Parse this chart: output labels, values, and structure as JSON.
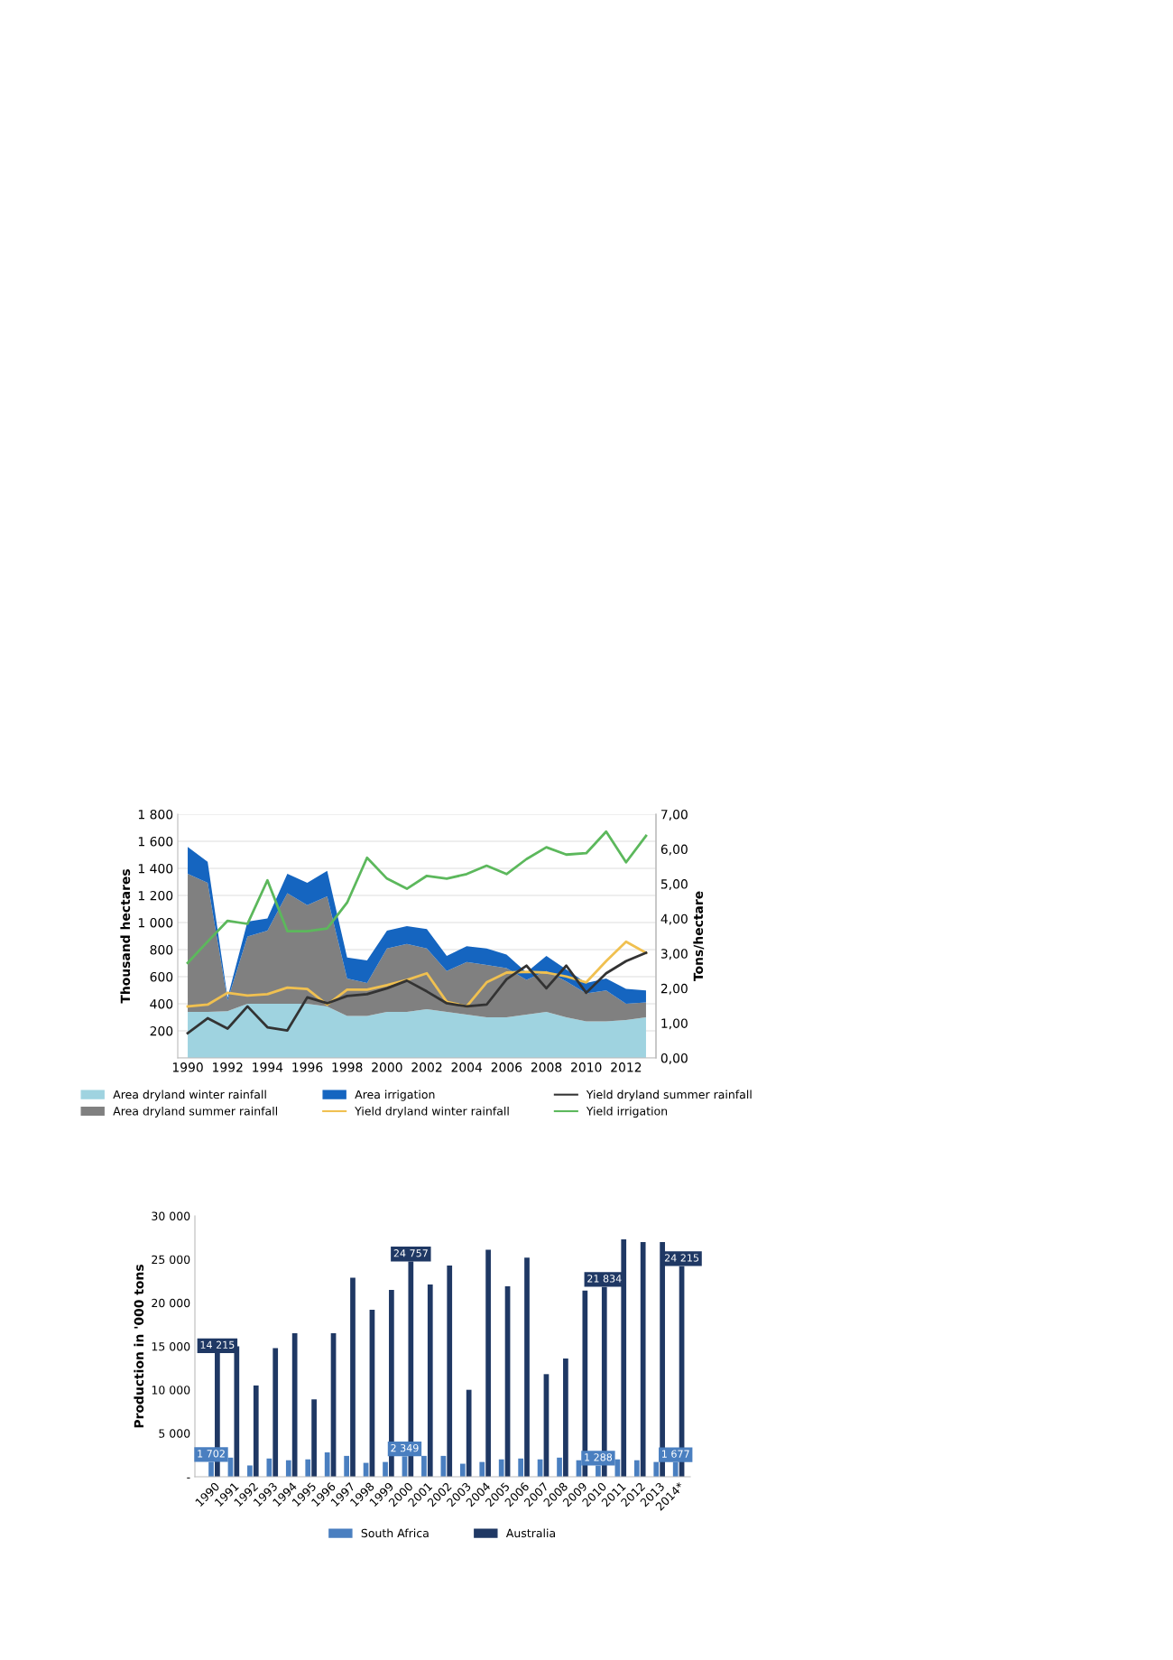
{
  "chart_data": [
    {
      "type": "area",
      "ylabel": "Thousand hectares",
      "y2label": "Tons/hectare",
      "stacked": true,
      "grid": "y",
      "legend": "bottom",
      "x": [
        1990,
        1991,
        1992,
        1993,
        1994,
        1995,
        1996,
        1997,
        1998,
        1999,
        2000,
        2001,
        2002,
        2003,
        2004,
        2005,
        2006,
        2007,
        2008,
        2009,
        2010,
        2011,
        2012,
        2013
      ],
      "xlim": [
        1989.5,
        2013.5
      ],
      "xticks": [
        1990,
        1992,
        1994,
        1996,
        1998,
        2000,
        2002,
        2004,
        2006,
        2008,
        2010,
        2012
      ],
      "ylim": [
        0,
        1800
      ],
      "yticks": [
        {
          "value": 0,
          "label": null
        },
        200,
        400,
        600,
        800,
        {
          "value": 1000,
          "label": "1 000"
        },
        {
          "value": 1200,
          "label": "1 200"
        },
        {
          "value": 1400,
          "label": "1 400"
        },
        {
          "value": 1600,
          "label": "1 600"
        },
        {
          "value": 1800,
          "label": "1 800"
        }
      ],
      "y2lim": [
        0,
        7
      ],
      "y2ticks": [
        {
          "value": 0,
          "label": "0,00"
        },
        {
          "value": 1,
          "label": "1,00"
        },
        {
          "value": 2,
          "label": "2,00"
        },
        {
          "value": 3,
          "label": "3,00"
        },
        {
          "value": 4,
          "label": "4,00"
        },
        {
          "value": 5,
          "label": "5,00"
        },
        {
          "value": 6,
          "label": "6,00"
        },
        {
          "value": 7,
          "label": "7,00"
        }
      ],
      "series": [
        {
          "name": "Area dryland winter rainfall",
          "type": "area",
          "color": "#9fd3e0",
          "values": [
            340,
            340,
            345,
            400,
            400,
            400,
            400,
            380,
            310,
            310,
            340,
            340,
            360,
            340,
            320,
            300,
            300,
            320,
            340,
            300,
            270,
            270,
            280,
            300
          ]
        },
        {
          "name": "Area dryland summer rainfall",
          "type": "area",
          "color": "#808080",
          "values": [
            1020,
            953,
            80,
            496,
            540,
            816,
            728,
            814,
            277,
            244,
            468,
            501,
            448,
            302,
            388,
            386,
            364,
            256,
            302,
            265,
            207,
            229,
            120,
            110
          ]
        },
        {
          "name": "Area irrigation",
          "type": "area",
          "color": "#1565c0",
          "values": [
            198,
            155,
            20,
            110,
            90,
            144,
            165,
            188,
            155,
            166,
            132,
            132,
            143,
            111,
            117,
            122,
            100,
            55,
            111,
            88,
            77,
            88,
            110,
            89
          ]
        },
        {
          "name": "Yield dryland winter rainfall",
          "type": "line",
          "axis": "y2",
          "color": "#f0c050",
          "values": [
            1.48,
            1.53,
            1.87,
            1.79,
            1.83,
            2.02,
            1.98,
            1.53,
            1.96,
            1.96,
            2.09,
            2.24,
            2.43,
            1.61,
            1.48,
            2.17,
            2.45,
            2.47,
            2.45,
            2.34,
            2.17,
            2.78,
            3.34,
            3.02
          ]
        },
        {
          "name": "Yield dryland summer rainfall",
          "type": "line",
          "axis": "y2",
          "color": "#333333",
          "values": [
            0.71,
            1.14,
            0.84,
            1.48,
            0.88,
            0.79,
            1.74,
            1.57,
            1.78,
            1.83,
            2.0,
            2.22,
            1.91,
            1.57,
            1.48,
            1.53,
            2.26,
            2.65,
            2.0,
            2.65,
            1.87,
            2.43,
            2.78,
            3.02
          ]
        },
        {
          "name": "Yield irrigation",
          "type": "line",
          "axis": "y2",
          "color": "#5cb85c",
          "values": [
            2.73,
            3.34,
            3.94,
            3.85,
            5.1,
            3.64,
            3.64,
            3.72,
            4.46,
            5.75,
            5.15,
            4.86,
            5.23,
            5.15,
            5.28,
            5.52,
            5.28,
            5.71,
            6.05,
            5.84,
            5.88,
            6.5,
            5.62,
            6.38
          ]
        }
      ]
    },
    {
      "type": "bar",
      "ylabel": "Production in '000 tons",
      "legend": "bottom",
      "categories": [
        "1990",
        "1991",
        "1992",
        "1993",
        "1994",
        "1995",
        "1996",
        "1997",
        "1998",
        "1999",
        "2000",
        "2001",
        "2002",
        "2003",
        "2004",
        "2005",
        "2006",
        "2007",
        "2008",
        "2009",
        "2010",
        "2011",
        "2012",
        "2013",
        "2014*"
      ],
      "ylim": [
        0,
        30000
      ],
      "yticks": [
        {
          "value": 0,
          "label": "-"
        },
        {
          "value": 5000,
          "label": "5 000"
        },
        {
          "value": 10000,
          "label": "10 000"
        },
        {
          "value": 15000,
          "label": "15 000"
        },
        {
          "value": 20000,
          "label": "20 000"
        },
        {
          "value": 25000,
          "label": "25 000"
        },
        {
          "value": 30000,
          "label": "30 000"
        }
      ],
      "series": [
        {
          "name": "South Africa",
          "color": "#4a7fc0",
          "values": [
            1702,
            2200,
            1300,
            2100,
            1900,
            2000,
            2800,
            2400,
            1600,
            1700,
            2349,
            2400,
            2400,
            1500,
            1700,
            2000,
            2100,
            2000,
            2200,
            1900,
            1288,
            2000,
            1900,
            1700,
            1677
          ],
          "value_labels": [
            "1 702",
            null,
            null,
            null,
            null,
            null,
            null,
            null,
            null,
            null,
            "2 349",
            null,
            null,
            null,
            null,
            null,
            null,
            null,
            null,
            null,
            "1 288",
            null,
            null,
            null,
            "1 677"
          ]
        },
        {
          "name": "Australia",
          "color": "#1f3864",
          "values": [
            14215,
            15000,
            10500,
            14800,
            16500,
            8900,
            16500,
            22900,
            19200,
            21500,
            24757,
            22100,
            24300,
            10000,
            26100,
            21900,
            25200,
            11800,
            13600,
            21400,
            21834,
            27300,
            27000,
            27000,
            24215
          ],
          "value_labels": [
            "14 215",
            null,
            null,
            null,
            null,
            null,
            null,
            null,
            null,
            null,
            "24 757",
            null,
            null,
            null,
            null,
            null,
            null,
            null,
            null,
            null,
            "21 834",
            null,
            null,
            null,
            "24 215"
          ]
        }
      ]
    }
  ]
}
